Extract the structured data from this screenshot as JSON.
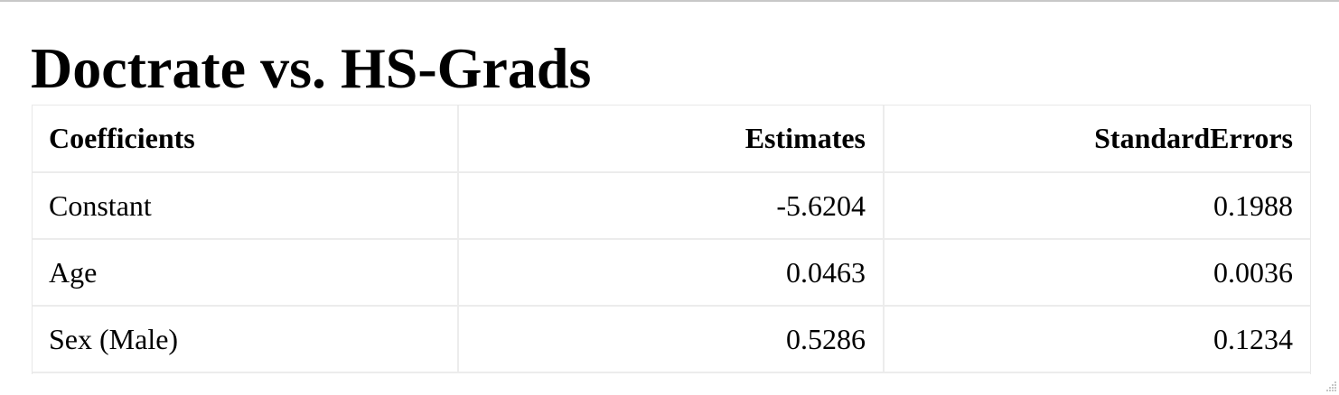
{
  "title": "Doctrate vs. HS-Grads",
  "table": {
    "headers": [
      "Coefficients",
      "Estimates",
      "StandardErrors"
    ],
    "rows": [
      [
        "Constant",
        "-5.6204",
        "0.1988"
      ],
      [
        "Age",
        "0.0463",
        "0.0036"
      ],
      [
        "Sex (Male)",
        "0.5286",
        "0.1234"
      ]
    ]
  },
  "icons": {
    "resize_grip": "resize-grip-icon"
  }
}
